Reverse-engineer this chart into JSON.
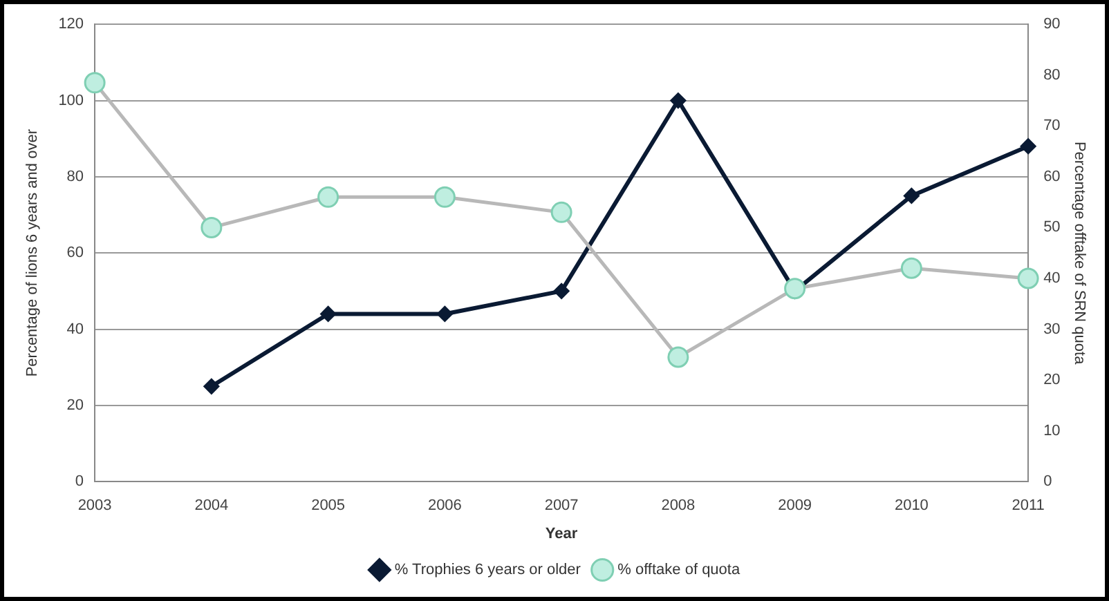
{
  "chart_data": {
    "type": "line",
    "xlabel": "Year",
    "ylabel": "Percentage of lions 6 years and over",
    "y2label": "Percentage offtake of SRN quota",
    "categories": [
      "2003",
      "2004",
      "2005",
      "2006",
      "2007",
      "2008",
      "2009",
      "2010",
      "2011"
    ],
    "series": [
      {
        "name": "% Trophies 6 years or older",
        "color": "#0a1a33",
        "marker": "diamond",
        "values": [
          null,
          25,
          44,
          44,
          50,
          100,
          50,
          75,
          88
        ]
      },
      {
        "name": "% offtake of quota",
        "color": "#b8b8b8",
        "marker": "circle",
        "axis": "y2",
        "values": [
          78.5,
          50,
          56,
          56,
          53,
          24.5,
          38,
          42,
          40
        ]
      }
    ],
    "ylim": [
      0,
      120
    ],
    "yticks": [
      0,
      20,
      40,
      60,
      80,
      100,
      120
    ],
    "y2lim": [
      0,
      90
    ],
    "y2ticks": [
      0,
      10,
      20,
      30,
      40,
      50,
      60,
      70,
      80,
      90
    ],
    "grid": "y",
    "legend": "bottom",
    "line_style": "solid"
  }
}
